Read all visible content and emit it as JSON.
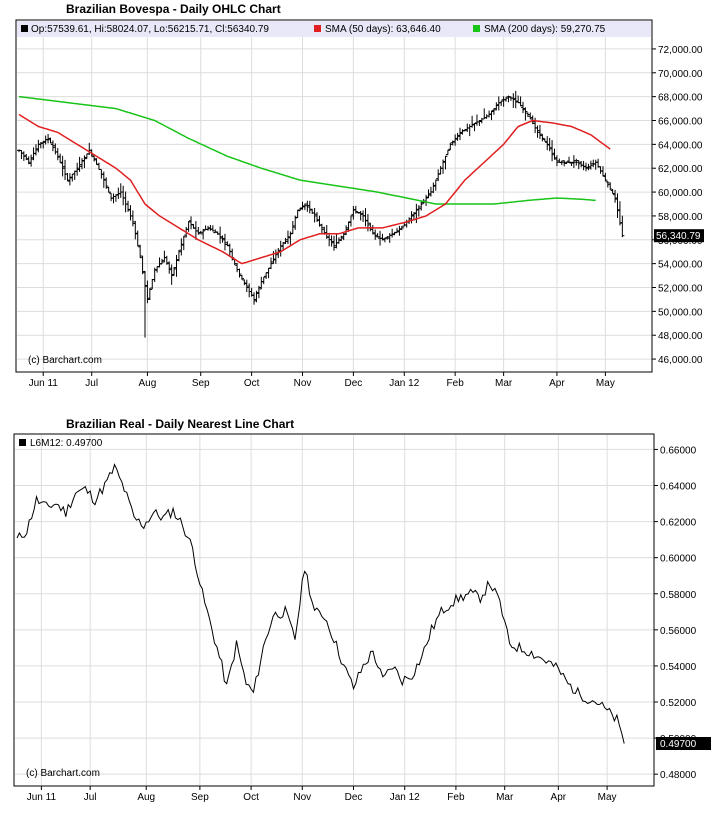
{
  "chart_data": [
    {
      "type": "ohlc",
      "title": "Brazilian Bovespa - Daily OHLC Chart",
      "legend": {
        "ohlc": "Op:57539.61, Hi:58024.07, Lo:56215.71, Cl:56340.79",
        "sma50": "SMA (50 days): 63,646.40",
        "sma200": "SMA (200 days): 59,270.75"
      },
      "watermark": "(c) Barchart.com",
      "last_label": "56,340.79",
      "last_value": 56340.79,
      "ylim": [
        45000,
        73000
      ],
      "yticks": [
        46000,
        48000,
        50000,
        52000,
        54000,
        56000,
        58000,
        60000,
        62000,
        64000,
        66000,
        68000,
        70000,
        72000
      ],
      "ytick_labels": [
        "46,000.00",
        "48,000.00",
        "50,000.00",
        "52,000.00",
        "54,000.00",
        "56,000.00",
        "58,000.00",
        "60,000.00",
        "62,000.00",
        "64,000.00",
        "66,000.00",
        "68,000.00",
        "70,000.00",
        "72,000.00"
      ],
      "xtick_labels": [
        "Jun 11",
        "Jul",
        "Aug",
        "Sep",
        "Oct",
        "Nov",
        "Dec",
        "Jan 12",
        "Feb",
        "Mar",
        "Apr",
        "May"
      ],
      "xtick_days": [
        10,
        30,
        53,
        75,
        96,
        117,
        138,
        159,
        180,
        200,
        222,
        242
      ],
      "day_range": [
        0,
        260
      ],
      "grid": true,
      "colors": {
        "bars": "#000000",
        "sma50": "#e02020",
        "sma200": "#19c419",
        "legend_bg": "#e8e8f8",
        "last_bg": "#000000"
      },
      "close_anchors": [
        [
          0,
          63500
        ],
        [
          4,
          62500
        ],
        [
          8,
          64000
        ],
        [
          12,
          64500
        ],
        [
          16,
          63000
        ],
        [
          20,
          61000
        ],
        [
          24,
          62000
        ],
        [
          29,
          63500
        ],
        [
          34,
          61500
        ],
        [
          38,
          59500
        ],
        [
          42,
          60000
        ],
        [
          47,
          57500
        ],
        [
          50,
          54500
        ],
        [
          53,
          51000
        ],
        [
          56,
          53500
        ],
        [
          60,
          54500
        ],
        [
          63,
          53000
        ],
        [
          66,
          55000
        ],
        [
          70,
          57500
        ],
        [
          74,
          56500
        ],
        [
          78,
          57000
        ],
        [
          82,
          56500
        ],
        [
          86,
          55500
        ],
        [
          90,
          53500
        ],
        [
          94,
          52000
        ],
        [
          97,
          51000
        ],
        [
          100,
          52500
        ],
        [
          104,
          54000
        ],
        [
          108,
          55500
        ],
        [
          112,
          56500
        ],
        [
          115,
          58500
        ],
        [
          118,
          59000
        ],
        [
          122,
          58000
        ],
        [
          126,
          56500
        ],
        [
          130,
          55500
        ],
        [
          134,
          56500
        ],
        [
          138,
          58500
        ],
        [
          142,
          58000
        ],
        [
          146,
          56500
        ],
        [
          150,
          56000
        ],
        [
          154,
          56500
        ],
        [
          158,
          57000
        ],
        [
          162,
          58000
        ],
        [
          166,
          59000
        ],
        [
          170,
          60000
        ],
        [
          174,
          62000
        ],
        [
          178,
          64000
        ],
        [
          182,
          65000
        ],
        [
          186,
          65500
        ],
        [
          190,
          66000
        ],
        [
          194,
          66500
        ],
        [
          198,
          67500
        ],
        [
          202,
          68000
        ],
        [
          206,
          67500
        ],
        [
          210,
          66500
        ],
        [
          214,
          65000
        ],
        [
          218,
          64000
        ],
        [
          222,
          62500
        ],
        [
          226,
          62500
        ],
        [
          230,
          62500
        ],
        [
          234,
          62000
        ],
        [
          238,
          62500
        ],
        [
          242,
          61000
        ],
        [
          246,
          59500
        ],
        [
          249,
          56340
        ]
      ],
      "sma50_anchors": [
        [
          0,
          66500
        ],
        [
          8,
          65500
        ],
        [
          16,
          65000
        ],
        [
          24,
          64000
        ],
        [
          32,
          63000
        ],
        [
          40,
          62000
        ],
        [
          46,
          61000
        ],
        [
          52,
          59000
        ],
        [
          58,
          58000
        ],
        [
          66,
          57000
        ],
        [
          74,
          56000
        ],
        [
          84,
          55000
        ],
        [
          92,
          54000
        ],
        [
          100,
          54500
        ],
        [
          108,
          55000
        ],
        [
          116,
          56000
        ],
        [
          124,
          56500
        ],
        [
          132,
          56500
        ],
        [
          140,
          57000
        ],
        [
          150,
          57000
        ],
        [
          160,
          57500
        ],
        [
          168,
          58000
        ],
        [
          176,
          59000
        ],
        [
          184,
          61000
        ],
        [
          192,
          62500
        ],
        [
          200,
          64000
        ],
        [
          206,
          65500
        ],
        [
          212,
          66000
        ],
        [
          220,
          65800
        ],
        [
          228,
          65500
        ],
        [
          236,
          64800
        ],
        [
          244,
          63600
        ]
      ],
      "sma200_anchors": [
        [
          0,
          68000
        ],
        [
          20,
          67500
        ],
        [
          40,
          67000
        ],
        [
          56,
          66000
        ],
        [
          70,
          64500
        ],
        [
          86,
          63000
        ],
        [
          100,
          62000
        ],
        [
          116,
          61000
        ],
        [
          132,
          60500
        ],
        [
          148,
          60000
        ],
        [
          160,
          59500
        ],
        [
          172,
          59000
        ],
        [
          184,
          59000
        ],
        [
          196,
          59000
        ],
        [
          210,
          59300
        ],
        [
          222,
          59500
        ],
        [
          232,
          59400
        ],
        [
          238,
          59300
        ]
      ]
    },
    {
      "type": "line",
      "title": "Brazilian Real - Daily Nearest Line Chart",
      "legend": {
        "series": "L6M12: 0.49700"
      },
      "watermark": "(c) Barchart.com",
      "last_label": "0.49700",
      "last_value": 0.497,
      "ylim": [
        0.474,
        0.668
      ],
      "yticks": [
        0.48,
        0.5,
        0.52,
        0.54,
        0.56,
        0.58,
        0.6,
        0.62,
        0.64,
        0.66
      ],
      "ytick_labels": [
        "0.48000",
        "0.50000",
        "0.52000",
        "0.54000",
        "0.56000",
        "0.58000",
        "0.60000",
        "0.62000",
        "0.64000",
        "0.66000"
      ],
      "xtick_labels": [
        "Jun 11",
        "Jul",
        "Aug",
        "Sep",
        "Oct",
        "Nov",
        "Dec",
        "Jan 12",
        "Feb",
        "Mar",
        "Apr",
        "May"
      ],
      "xtick_days": [
        10,
        30,
        53,
        75,
        96,
        117,
        138,
        159,
        180,
        200,
        222,
        242
      ],
      "day_range": [
        0,
        260
      ],
      "grid": true,
      "colors": {
        "line": "#000000",
        "last_bg": "#000000"
      },
      "series": [
        {
          "values": [
            [
              0,
              0.61
            ],
            [
              4,
              0.615
            ],
            [
              8,
              0.632
            ],
            [
              12,
              0.628
            ],
            [
              16,
              0.63
            ],
            [
              20,
              0.625
            ],
            [
              24,
              0.636
            ],
            [
              28,
              0.638
            ],
            [
              32,
              0.632
            ],
            [
              36,
              0.64
            ],
            [
              40,
              0.65
            ],
            [
              44,
              0.638
            ],
            [
              48,
              0.622
            ],
            [
              52,
              0.618
            ],
            [
              56,
              0.625
            ],
            [
              60,
              0.622
            ],
            [
              64,
              0.626
            ],
            [
              68,
              0.618
            ],
            [
              72,
              0.605
            ],
            [
              76,
              0.58
            ],
            [
              80,
              0.56
            ],
            [
              84,
              0.54
            ],
            [
              86,
              0.528
            ],
            [
              90,
              0.552
            ],
            [
              94,
              0.53
            ],
            [
              97,
              0.525
            ],
            [
              101,
              0.55
            ],
            [
              105,
              0.568
            ],
            [
              110,
              0.57
            ],
            [
              114,
              0.555
            ],
            [
              118,
              0.595
            ],
            [
              122,
              0.57
            ],
            [
              126,
              0.568
            ],
            [
              130,
              0.555
            ],
            [
              134,
              0.54
            ],
            [
              138,
              0.528
            ],
            [
              142,
              0.54
            ],
            [
              146,
              0.548
            ],
            [
              150,
              0.532
            ],
            [
              154,
              0.54
            ],
            [
              158,
              0.532
            ],
            [
              162,
              0.535
            ],
            [
              166,
              0.545
            ],
            [
              170,
              0.56
            ],
            [
              174,
              0.57
            ],
            [
              178,
              0.575
            ],
            [
              182,
              0.578
            ],
            [
              186,
              0.58
            ],
            [
              190,
              0.578
            ],
            [
              194,
              0.586
            ],
            [
              198,
              0.575
            ],
            [
              202,
              0.552
            ],
            [
              206,
              0.55
            ],
            [
              210,
              0.548
            ],
            [
              214,
              0.545
            ],
            [
              218,
              0.542
            ],
            [
              222,
              0.538
            ],
            [
              226,
              0.53
            ],
            [
              230,
              0.525
            ],
            [
              234,
              0.522
            ],
            [
              238,
              0.52
            ],
            [
              242,
              0.515
            ],
            [
              246,
              0.51
            ],
            [
              249,
              0.497
            ]
          ]
        }
      ]
    }
  ]
}
